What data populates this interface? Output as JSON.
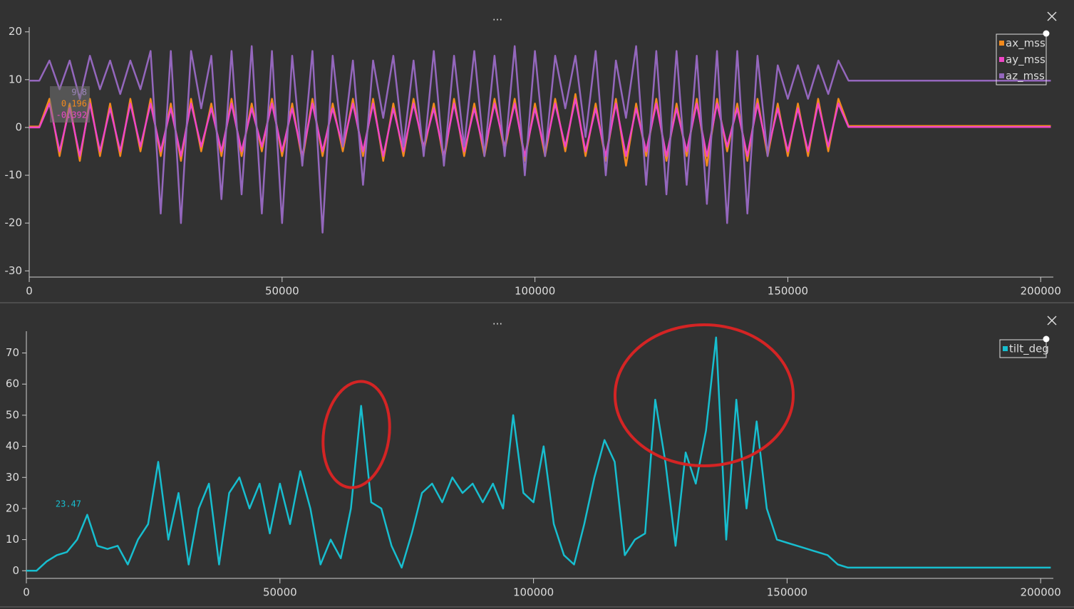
{
  "chart_data": [
    {
      "type": "line",
      "title": "...",
      "legend": "upper right",
      "x": [
        0,
        2000,
        4000,
        6000,
        8000,
        10000,
        12000,
        14000,
        16000,
        18000,
        20000,
        22000,
        24000,
        26000,
        28000,
        30000,
        32000,
        34000,
        36000,
        38000,
        40000,
        42000,
        44000,
        46000,
        48000,
        50000,
        52000,
        54000,
        56000,
        58000,
        60000,
        62000,
        64000,
        66000,
        68000,
        70000,
        72000,
        74000,
        76000,
        78000,
        80000,
        82000,
        84000,
        86000,
        88000,
        90000,
        92000,
        94000,
        96000,
        98000,
        100000,
        102000,
        104000,
        106000,
        108000,
        110000,
        112000,
        114000,
        116000,
        118000,
        120000,
        122000,
        124000,
        126000,
        128000,
        130000,
        132000,
        134000,
        136000,
        138000,
        140000,
        142000,
        144000,
        146000,
        148000,
        150000,
        152000,
        154000,
        156000,
        158000,
        160000,
        162000,
        164000,
        166000,
        168000,
        170000,
        172000,
        174000,
        176000,
        178000,
        180000,
        182000,
        184000,
        186000,
        188000,
        190000,
        192000,
        194000,
        196000,
        198000,
        200000,
        202000
      ],
      "series": [
        {
          "name": "ax_mss",
          "color": "#f28a1c",
          "values": [
            0.2,
            0.2,
            6,
            -6,
            5,
            -7,
            6,
            -6,
            5,
            -6,
            6,
            -5,
            6,
            -6,
            5,
            -7,
            6,
            -5,
            5,
            -6,
            6,
            -6,
            5,
            -5,
            6,
            -6,
            5,
            -7,
            6,
            -6,
            5,
            -5,
            6,
            -6,
            6,
            -7,
            5,
            -6,
            6,
            -5,
            5,
            -7,
            6,
            -6,
            5,
            -6,
            6,
            -5,
            6,
            -7,
            5,
            -6,
            6,
            -5,
            7,
            -6,
            5,
            -7,
            6,
            -8,
            5,
            -6,
            6,
            -7,
            5,
            -6,
            6,
            -8,
            6,
            -5,
            5,
            -7,
            6,
            -6,
            5,
            -6,
            5,
            -6,
            6,
            -5,
            6,
            0.3,
            0.3,
            0.3,
            0.3,
            0.3,
            0.3,
            0.3,
            0.3,
            0.3,
            0.3,
            0.3,
            0.3,
            0.3,
            0.3,
            0.3,
            0.3,
            0.3,
            0.3,
            0.3,
            0.3,
            0.3
          ]
        },
        {
          "name": "ay_mss",
          "color": "#ee46c6",
          "values": [
            0,
            0,
            5,
            -5,
            4,
            -6,
            5,
            -5,
            4,
            -5,
            5,
            -4,
            5,
            -5,
            4,
            -6,
            5,
            -4,
            4,
            -5,
            5,
            -5,
            4,
            -4,
            5,
            -5,
            4,
            -6,
            5,
            -5,
            4,
            -4,
            5,
            -5,
            5,
            -6,
            4,
            -5,
            5,
            -4,
            4,
            -6,
            5,
            -5,
            4,
            -5,
            5,
            -4,
            5,
            -6,
            4,
            -5,
            5,
            -4,
            6,
            -5,
            4,
            -6,
            5,
            -6,
            4,
            -5,
            5,
            -6,
            4,
            -5,
            5,
            -6,
            5,
            -4,
            4,
            -6,
            5,
            -5,
            4,
            -5,
            4,
            -5,
            5,
            -4,
            5,
            0.1,
            0.1,
            0.1,
            0.1,
            0.1,
            0.1,
            0.1,
            0.1,
            0.1,
            0.1,
            0.1,
            0.1,
            0.1,
            0.1,
            0.1,
            0.1,
            0.1,
            0.1,
            0.1,
            0.1,
            0.1
          ]
        },
        {
          "name": "az_mss",
          "color": "#9467bd",
          "values": [
            9.8,
            9.8,
            14,
            8,
            14,
            6,
            15,
            8,
            14,
            7,
            14,
            8,
            16,
            -18,
            16,
            -20,
            16,
            4,
            15,
            -15,
            16,
            -14,
            17,
            -18,
            16,
            -20,
            15,
            -8,
            16,
            -22,
            15,
            -4,
            14,
            -12,
            14,
            2,
            15,
            -4,
            14,
            -6,
            16,
            -8,
            15,
            -4,
            16,
            -6,
            15,
            -6,
            17,
            -10,
            16,
            -6,
            15,
            4,
            15,
            -2,
            16,
            -10,
            14,
            2,
            17,
            -12,
            16,
            -14,
            16,
            -12,
            15,
            -16,
            16,
            -20,
            16,
            -18,
            15,
            -6,
            13,
            6,
            13,
            6,
            13,
            7,
            14,
            9.8,
            9.8,
            9.8,
            9.8,
            9.8,
            9.8,
            9.8,
            9.8,
            9.8,
            9.8,
            9.8,
            9.8,
            9.8,
            9.8,
            9.8,
            9.8,
            9.8,
            9.8,
            9.8,
            9.8,
            9.8
          ]
        }
      ],
      "xlim": [
        0,
        202500
      ],
      "xticks": [
        0,
        50000,
        100000,
        150000,
        200000
      ],
      "ylim": [
        -31,
        21
      ],
      "yticks": [
        -30,
        -20,
        -10,
        0,
        10,
        20
      ],
      "annotations": [
        {
          "text": "9.8",
          "color": "#9a86b8"
        },
        {
          "text": "0.196",
          "color": "#f28a1c"
        },
        {
          "text": "-0.392",
          "color": "#ee46c6"
        }
      ]
    },
    {
      "type": "line",
      "title": "...",
      "legend": "upper right",
      "x": [
        0,
        2000,
        4000,
        6000,
        8000,
        10000,
        12000,
        14000,
        16000,
        18000,
        20000,
        22000,
        24000,
        26000,
        28000,
        30000,
        32000,
        34000,
        36000,
        38000,
        40000,
        42000,
        44000,
        46000,
        48000,
        50000,
        52000,
        54000,
        56000,
        58000,
        60000,
        62000,
        64000,
        66000,
        68000,
        70000,
        72000,
        74000,
        76000,
        78000,
        80000,
        82000,
        84000,
        86000,
        88000,
        90000,
        92000,
        94000,
        96000,
        98000,
        100000,
        102000,
        104000,
        106000,
        108000,
        110000,
        112000,
        114000,
        116000,
        118000,
        120000,
        122000,
        124000,
        126000,
        128000,
        130000,
        132000,
        134000,
        136000,
        138000,
        140000,
        142000,
        144000,
        146000,
        148000,
        150000,
        152000,
        154000,
        156000,
        158000,
        160000,
        162000,
        164000,
        166000,
        168000,
        170000,
        172000,
        174000,
        176000,
        178000,
        180000,
        182000,
        184000,
        186000,
        188000,
        190000,
        192000,
        194000,
        196000,
        198000,
        200000,
        202000
      ],
      "series": [
        {
          "name": "tilt_deg",
          "color": "#17becf",
          "values": [
            0,
            0,
            3,
            5,
            6,
            10,
            18,
            8,
            7,
            8,
            2,
            10,
            15,
            35,
            10,
            25,
            2,
            20,
            28,
            2,
            25,
            30,
            20,
            28,
            12,
            28,
            15,
            32,
            20,
            2,
            10,
            4,
            20,
            53,
            22,
            20,
            8,
            1,
            12,
            25,
            28,
            22,
            30,
            25,
            28,
            22,
            28,
            20,
            50,
            25,
            22,
            40,
            15,
            5,
            2,
            15,
            30,
            42,
            35,
            5,
            10,
            12,
            55,
            35,
            8,
            38,
            28,
            45,
            75,
            10,
            55,
            20,
            48,
            20,
            10,
            9,
            8,
            7,
            6,
            5,
            2,
            1,
            1,
            1,
            1,
            1,
            1,
            1,
            1,
            1,
            1,
            1,
            1,
            1,
            1,
            1,
            1,
            1,
            1,
            1,
            1,
            1
          ]
        }
      ],
      "xlim": [
        0,
        202500
      ],
      "xticks": [
        0,
        50000,
        100000,
        150000,
        200000
      ],
      "ylim": [
        -2,
        77
      ],
      "yticks": [
        0,
        10,
        20,
        30,
        40,
        50,
        60,
        70
      ],
      "annotations": [
        {
          "text": "23.47",
          "color": "#17becf"
        }
      ]
    }
  ]
}
